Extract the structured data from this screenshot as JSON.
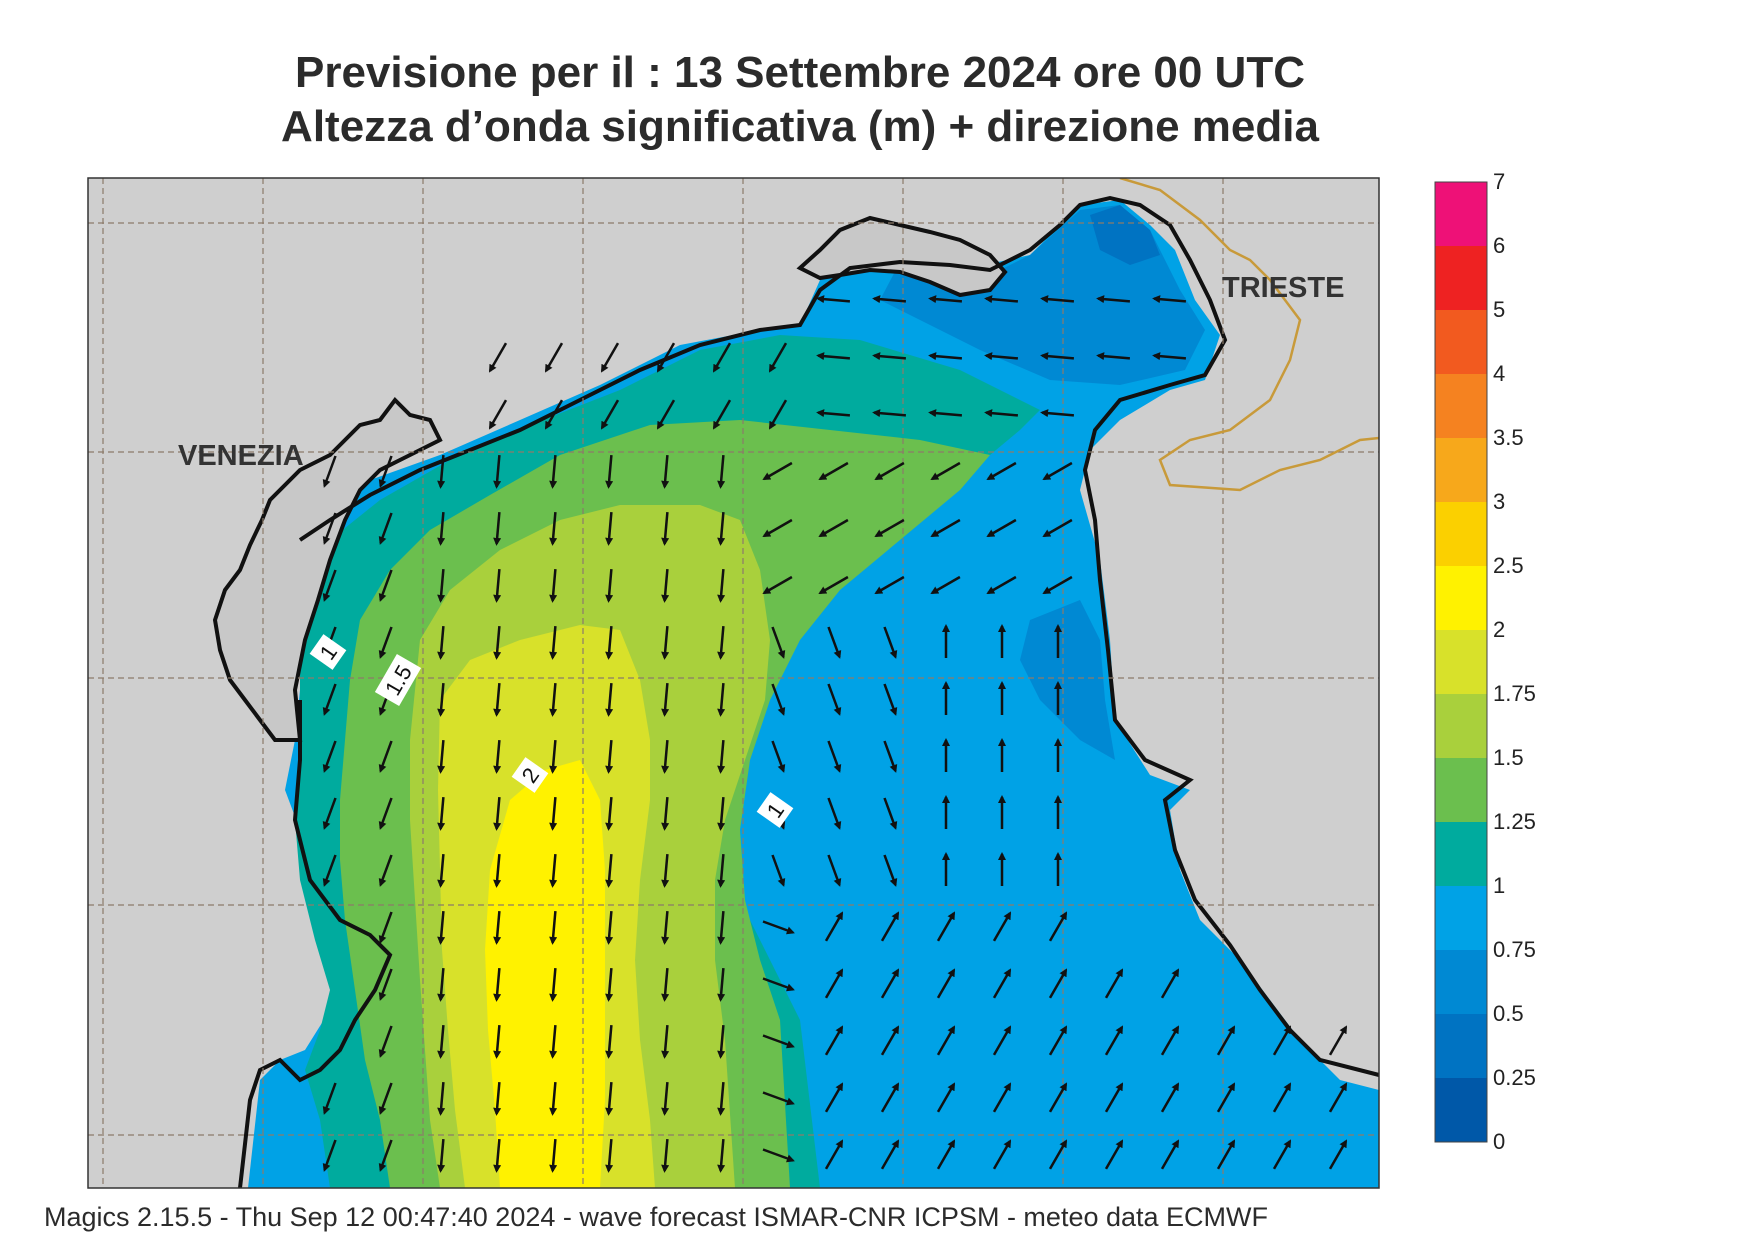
{
  "title": {
    "line1": "Previsione per il  :  13 Settembre 2024   ore 00 UTC",
    "line2": "Altezza d’onda significativa (m) + direzione media"
  },
  "map_labels": {
    "venezia": "VENEZIA",
    "trieste": "TRIESTE",
    "contour_1_west": "1",
    "contour_1_east": "1",
    "contour_1_5": "1.5",
    "contour_2": "2"
  },
  "colorbar": {
    "levels": [
      "7",
      "6",
      "5",
      "4",
      "3.5",
      "3",
      "2.5",
      "2",
      "1.75",
      "1.5",
      "1.25",
      "1",
      "0.75",
      "0.5",
      "0.25",
      "0"
    ],
    "colors": [
      "#ee1177",
      "#ee2222",
      "#f25a1f",
      "#f58220",
      "#f7a81b",
      "#fbd000",
      "#fff200",
      "#d8e12a",
      "#a9d03c",
      "#6bbf4e",
      "#00ab9e",
      "#00a2e6",
      "#0089d3",
      "#0073c2",
      "#0058a8"
    ]
  },
  "footer": "Magics 2.15.5 - Thu Sep 12 00:47:40 2024 - wave forecast  ISMAR-CNR  ICPSM - meteo data   ECMWF"
}
